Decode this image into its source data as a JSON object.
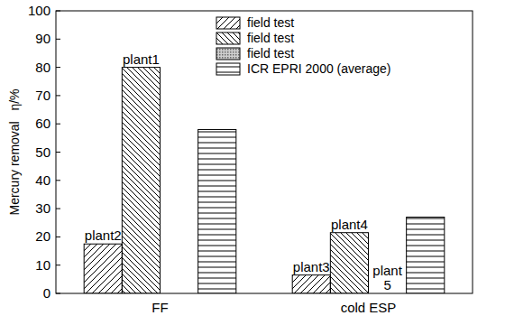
{
  "chart_data": {
    "type": "bar",
    "y_label": "Mercury removal   η/%",
    "categories": [
      "FF",
      "cold ESP"
    ],
    "series": [
      {
        "name": "field test",
        "color": "#000000",
        "values": [
          17.5,
          6.5
        ],
        "point_labels": [
          "plant2",
          "plant3"
        ]
      },
      {
        "name": "field test",
        "color": "#000000",
        "values": [
          80,
          21.5
        ],
        "point_labels": [
          "plant1",
          "plant4"
        ]
      },
      {
        "name": "field test",
        "color": "#000000",
        "values": [
          null,
          0
        ],
        "point_labels": [
          null,
          "plant 5"
        ]
      },
      {
        "name": "ICR EPRI 2000 (average)",
        "color": "#000000",
        "values": [
          58,
          27
        ]
      }
    ],
    "ylim": [
      0,
      100
    ],
    "yticks": [
      0,
      10,
      20,
      30,
      40,
      50,
      60,
      70,
      80,
      90,
      100
    ],
    "legend": "top",
    "grid": false
  }
}
